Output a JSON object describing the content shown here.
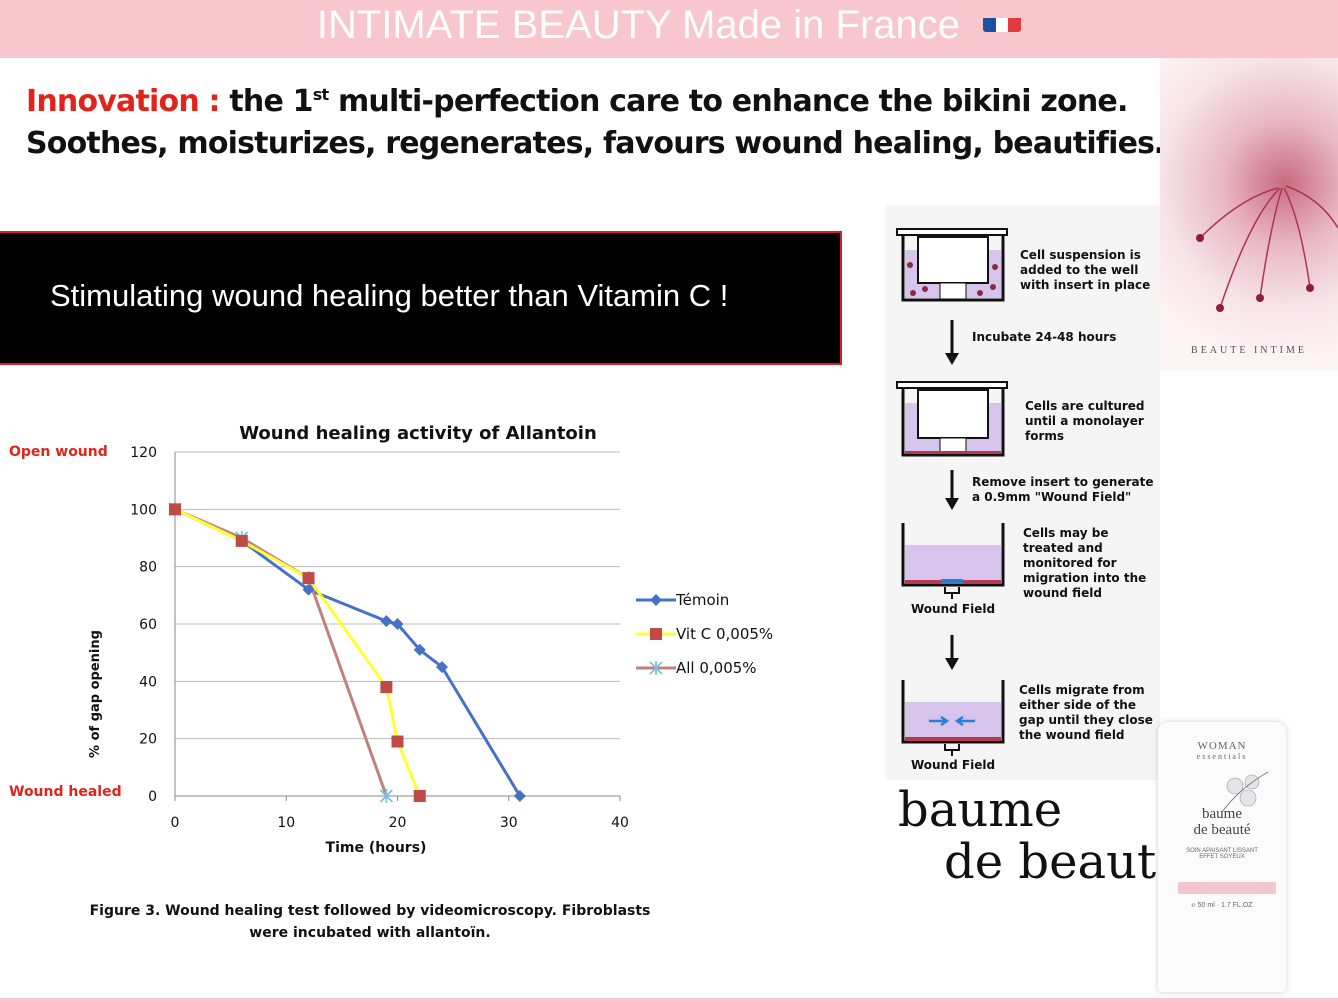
{
  "banner": {
    "title": "INTIMATE BEAUTY Made in France"
  },
  "headline": {
    "innovation": "Innovation :",
    "line1_a": " the 1",
    "line1_sup": "st",
    "line1_b": " multi-perfection care to enhance the bikini zone.",
    "line2": "Soothes, moisturizes, regenerates, favours wound healing, beautifies…"
  },
  "callout": {
    "text": "Stimulating wound healing better than Vitamin C !"
  },
  "flower_label": "BEAUTE INTIME",
  "diagram": {
    "step1": "Cell suspension is added to the well with insert in place",
    "arrow1": "Incubate 24-48 hours",
    "step2": "Cells are cultured until a monolayer forms",
    "arrow2": "Remove insert to generate a 0.9mm \"Wound Field\"",
    "step3": "Cells may be treated and monitored for migration into the wound field",
    "wound_field_1": "Wound Field",
    "step4": "Cells migrate from either side of the gap until they close the wound field",
    "wound_field_2": "Wound Field"
  },
  "product": {
    "name_line1": "baume",
    "name_line2": "de beauté",
    "tube_brand": "WOMAN",
    "tube_sub": "essentials",
    "tube_name1": "baume",
    "tube_name2": "de beauté",
    "tube_desc": "SOIN APAISANT LISSANT EFFET SOYEUX",
    "tube_size": "℮ 50 ml · 1.7 FL.OZ"
  },
  "chart_data": {
    "type": "line",
    "title": "Wound healing activity of Allantoin",
    "xlabel": "Time (hours)",
    "ylabel": "% of gap opening",
    "xlim": [
      0,
      40
    ],
    "ylim": [
      0,
      120
    ],
    "xticks": [
      0,
      10,
      20,
      30,
      40
    ],
    "yticks": [
      0,
      20,
      40,
      60,
      80,
      100,
      120
    ],
    "grid": "horizontal",
    "legend_position": "right",
    "annotations": {
      "top": "Open wound",
      "bottom": "Wound healed"
    },
    "series": [
      {
        "name": "Témoin",
        "color": "#4472c4",
        "marker": "diamond",
        "x": [
          0,
          6,
          12,
          19,
          20,
          22,
          24,
          31
        ],
        "y": [
          100,
          89,
          72,
          61,
          60,
          51,
          45,
          0
        ]
      },
      {
        "name": "Vit C 0,005%",
        "color": "#ffff33",
        "marker": "square",
        "markerColor": "#be4b48",
        "x": [
          0,
          6,
          12,
          19,
          20,
          22
        ],
        "y": [
          100,
          89,
          76,
          38,
          19,
          0
        ]
      },
      {
        "name": "All 0,005%",
        "color": "#c0807b",
        "marker": "asterisk",
        "markerColor": "#7fbfdf",
        "x": [
          0,
          6,
          12,
          19
        ],
        "y": [
          100,
          90,
          76,
          0
        ]
      }
    ]
  },
  "caption": {
    "line1": "Figure 3. Wound healing test followed by videomicroscopy. Fibroblasts",
    "line2": "were incubated with allantoïn."
  }
}
